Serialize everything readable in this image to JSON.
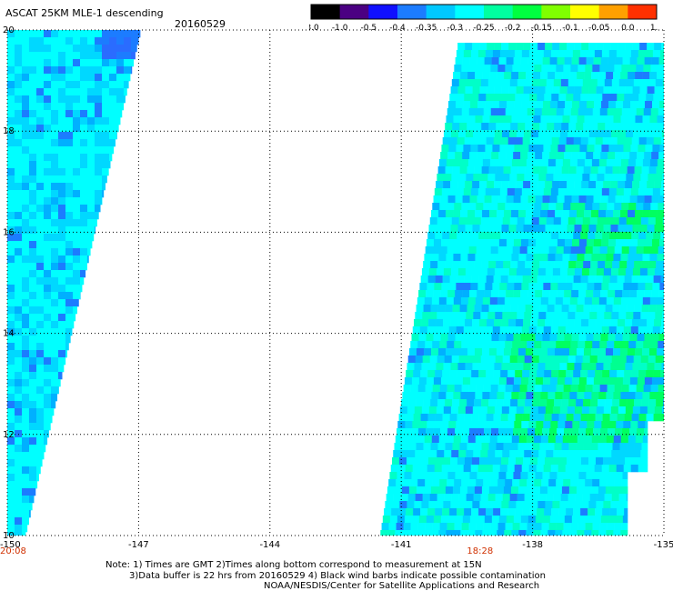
{
  "header": {
    "title": "ASCAT 25KM MLE-1 descending",
    "date": "20160529"
  },
  "colorbar": {
    "labels": [
      "-3.0",
      "-1.0",
      "-0.5",
      "-0.4",
      "-0.35",
      "-0.3",
      "-0.25",
      "-0.2",
      "-0.15",
      "-0.1",
      "-0.05",
      "0.0",
      "1.0"
    ],
    "colors": [
      "#000000",
      "#4b0082",
      "#1010ff",
      "#1c7cff",
      "#00c8ff",
      "#00ffff",
      "#00ffa0",
      "#00ff40",
      "#80ff00",
      "#ffff00",
      "#ffa000",
      "#ff3000"
    ]
  },
  "map": {
    "lon_range": [
      -150,
      -135
    ],
    "lat_range": [
      10,
      20
    ],
    "x_ticks": [
      "-150",
      "-147",
      "-144",
      "-141",
      "-138",
      "-135"
    ],
    "y_ticks": [
      "10",
      "12",
      "14",
      "16",
      "18",
      "20"
    ],
    "time_labels": [
      {
        "text": "20:08",
        "lon": -150,
        "color": "#d03000"
      },
      {
        "text": "18:28",
        "lon": -139.5,
        "color": "#d03000"
      }
    ]
  },
  "notes": [
    "Note: 1) Times are GMT 2)Times along bottom correspond to measurement at 15N",
    "3)Data buffer is 22 hrs from 20160529 4) Black wind barbs indicate possible contamination",
    "NOAA/NESDIS/Center for Satellite Applications and Research"
  ]
}
